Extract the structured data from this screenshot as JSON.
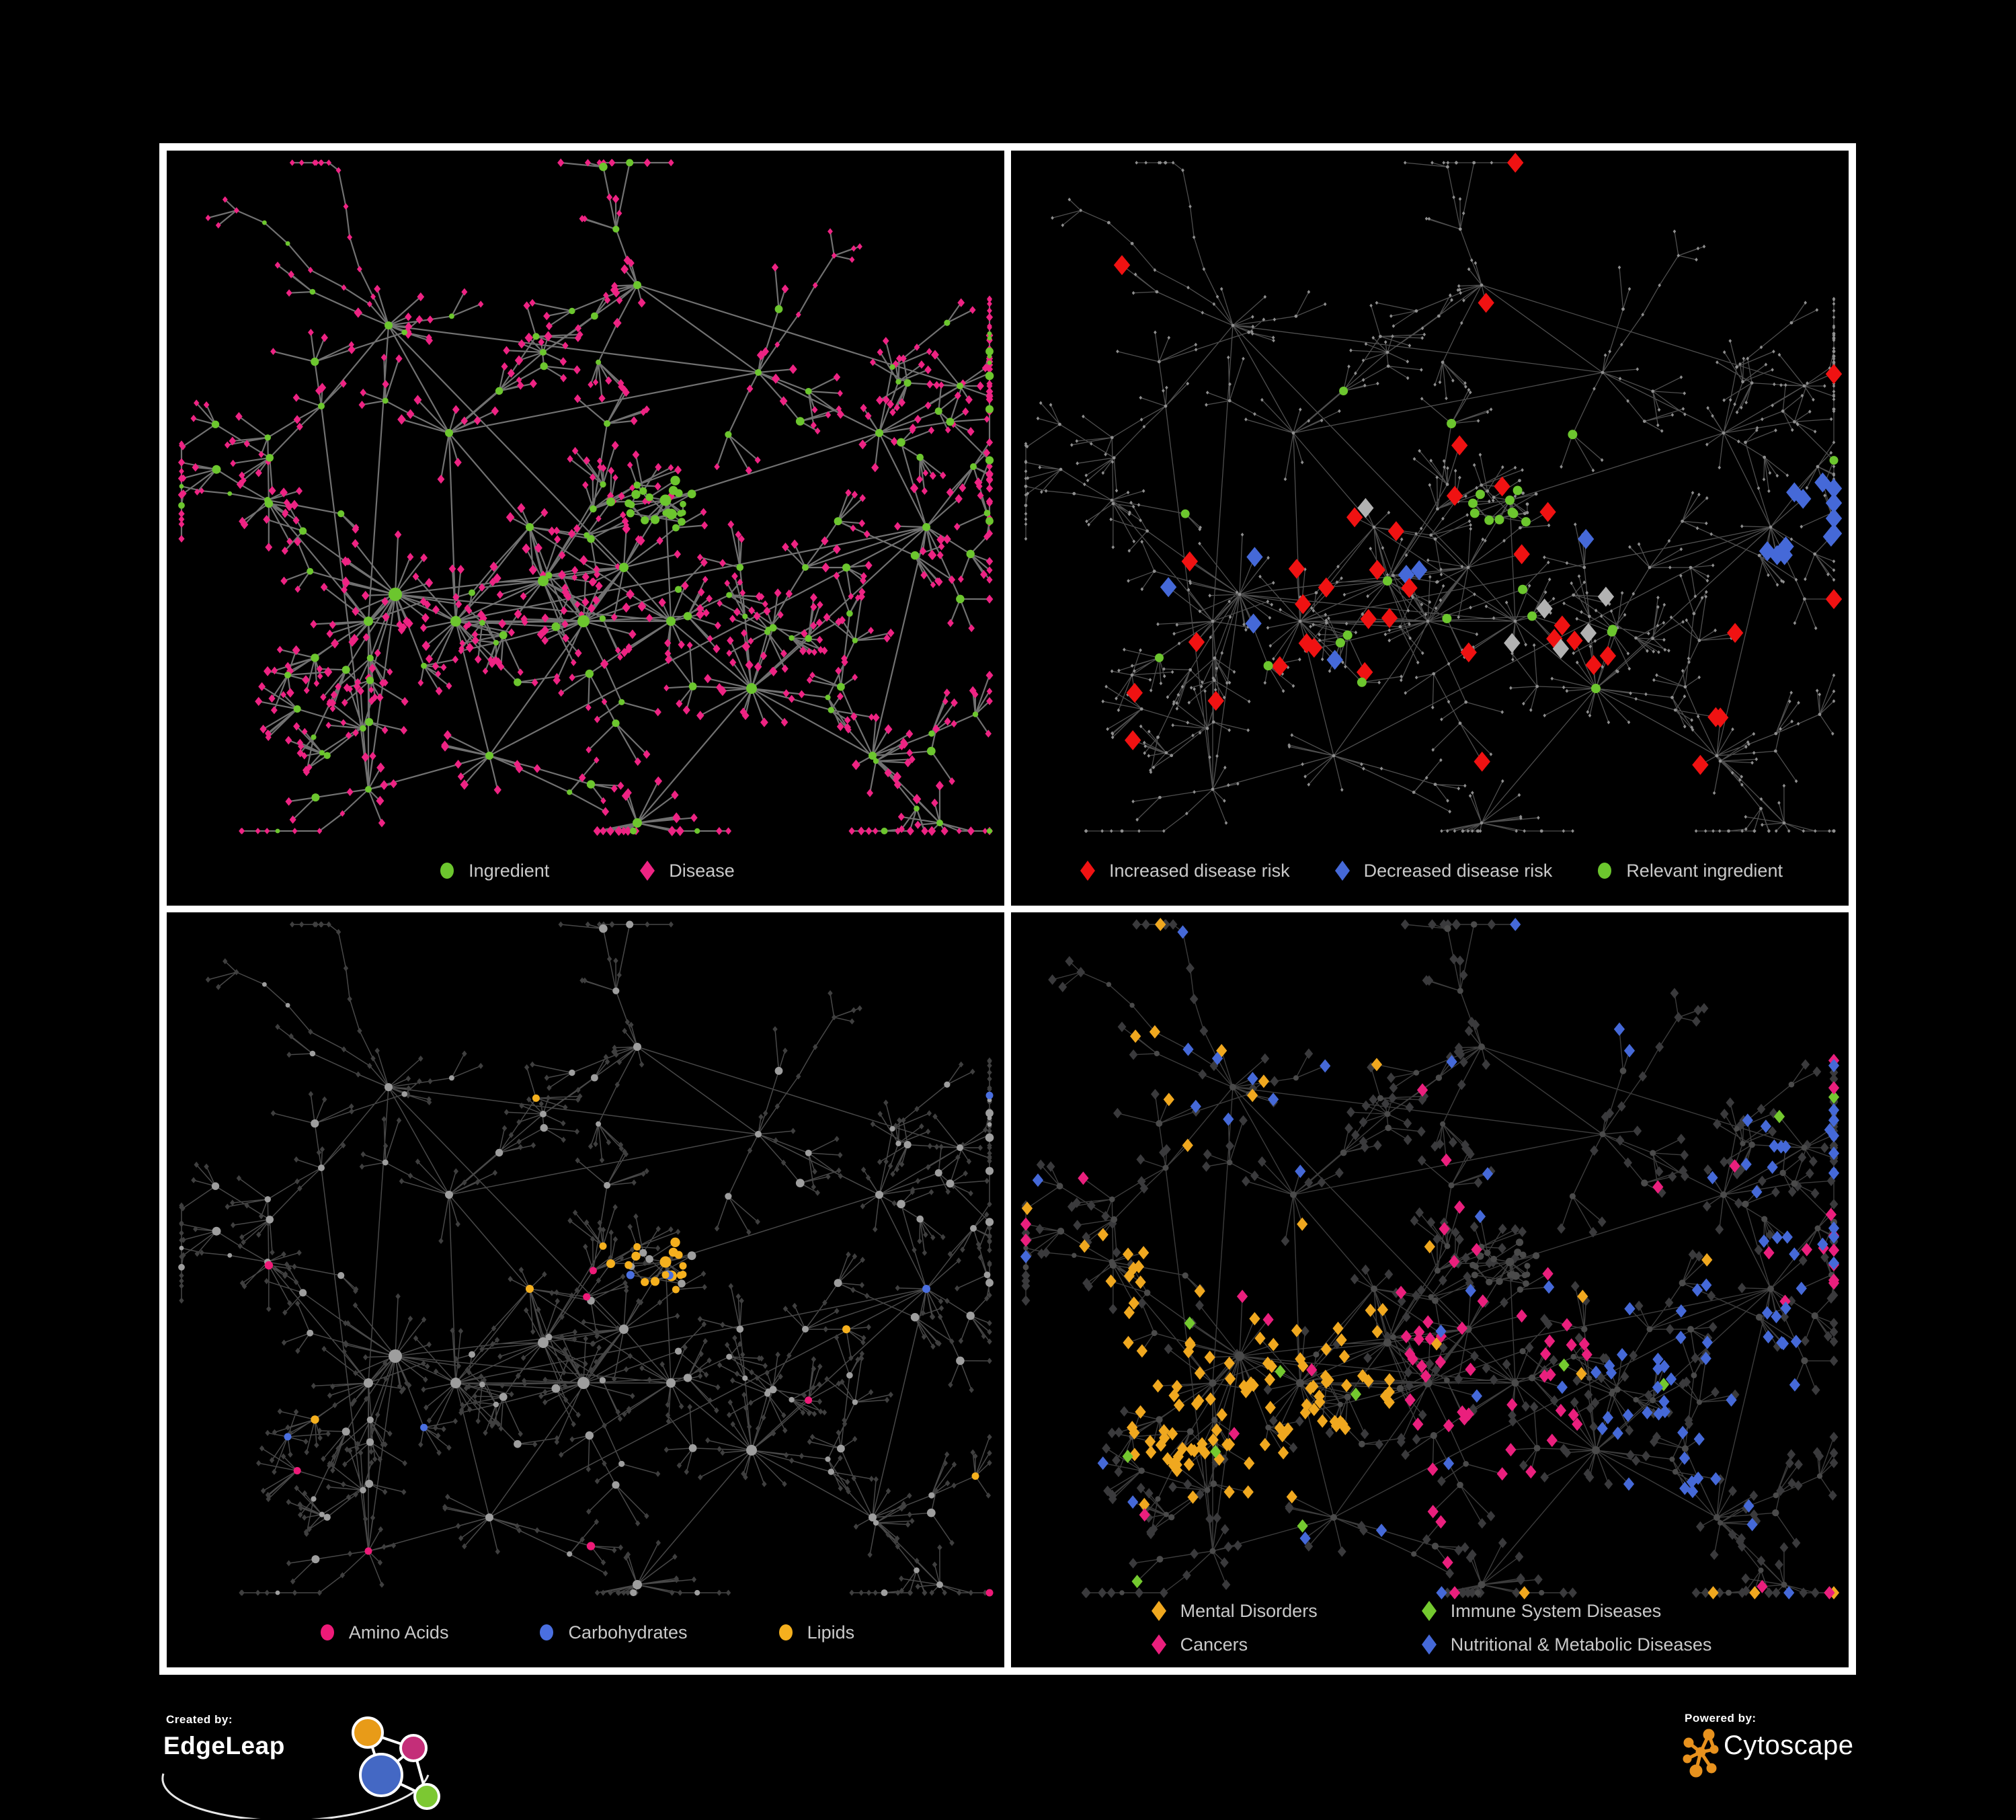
{
  "page": {
    "background": "#000000",
    "panel_border": "#ffffff"
  },
  "network": {
    "seed": 1337,
    "node_count_hint": 740
  },
  "panels": [
    {
      "key": "ingredient-disease",
      "legend": [
        {
          "label": "Ingredient",
          "shape": "circle",
          "color": "#6cc62e"
        },
        {
          "label": "Disease",
          "shape": "diamond",
          "color": "#ee2383"
        }
      ],
      "colors": {
        "ingredient": "#6cc62e",
        "disease": "#ee2383",
        "edge": "#7d7d7d"
      }
    },
    {
      "key": "disease-risk",
      "legend": [
        {
          "label": "Increased disease risk",
          "shape": "diamond",
          "color": "#f01212"
        },
        {
          "label": "Decreased disease risk",
          "shape": "diamond",
          "color": "#4569d8"
        },
        {
          "label": "Relevant ingredient",
          "shape": "circle",
          "color": "#6cc62e"
        }
      ],
      "colors": {
        "base": "#8f8f8f",
        "edge": "#6f6f6f",
        "increased": "#f01212",
        "decreased": "#4569d8",
        "neutral": "#b2b2b2",
        "relevant": "#6cc62e"
      }
    },
    {
      "key": "nutrient-classes",
      "legend": [
        {
          "label": "Amino Acids",
          "shape": "circle",
          "color": "#ee1a78"
        },
        {
          "label": "Carbohydrates",
          "shape": "circle",
          "color": "#4a6fe0"
        },
        {
          "label": "Lipids",
          "shape": "circle",
          "color": "#f5b01e"
        }
      ],
      "colors": {
        "ingredient": "#9e9e9e",
        "disease": "#3f3f3f",
        "edge": "#606060",
        "amino": "#ee1a78",
        "carb": "#4a6fe0",
        "lipid": "#f5b01e"
      }
    },
    {
      "key": "disease-categories",
      "legend_layout": "two-column",
      "legend": [
        {
          "label": "Mental Disorders",
          "shape": "diamond",
          "color": "#f0a81f"
        },
        {
          "label": "Immune System Diseases",
          "shape": "diamond",
          "color": "#74c92f"
        },
        {
          "label": "Cancers",
          "shape": "diamond",
          "color": "#ea1f7d"
        },
        {
          "label": "Nutritional & Metabolic Diseases",
          "shape": "diamond",
          "color": "#4569d8"
        }
      ],
      "colors": {
        "ingredient": "#4a4a4a",
        "disease": "#3a3a3c",
        "edge": "#565656",
        "mental": "#f0a81f",
        "immune": "#74c92f",
        "cancer": "#ea1f7d",
        "nutritional": "#4569d8"
      }
    }
  ],
  "footer": {
    "created_by": {
      "caption": "Created by:",
      "brand": "EdgeLeap",
      "logo_colors": {
        "orange": "#e89b18",
        "magenta": "#c42e79",
        "blue": "#4468c4",
        "green": "#7cc832",
        "outline": "#ffffff"
      }
    },
    "powered_by": {
      "caption": "Powered by:",
      "brand": "Cytoscape",
      "logo_color": "#e8921e"
    }
  }
}
